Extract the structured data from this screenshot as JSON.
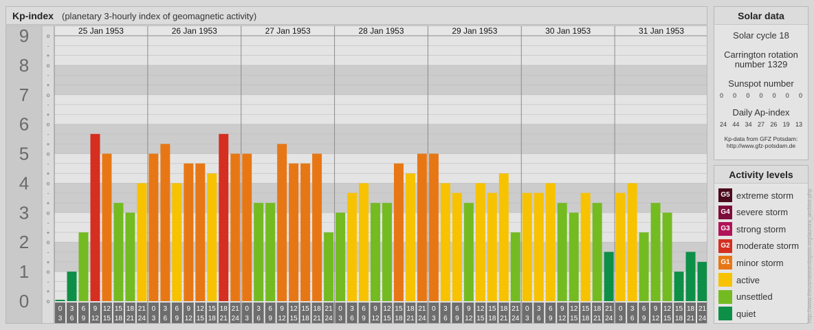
{
  "header": {
    "title": "Kp-index",
    "subtitle": "(planetary 3-hourly index of geomagnetic activity)"
  },
  "chart_data": {
    "type": "bar",
    "title": "Kp-index",
    "subtitle": "(planetary 3-hourly index of geomagnetic activity)",
    "y_range": [
      0,
      9
    ],
    "y_tick_labels": [
      "0",
      "1",
      "2",
      "3",
      "4",
      "5",
      "6",
      "7",
      "8",
      "9"
    ],
    "y_minor_tick_labels": [
      "o",
      "+",
      "-",
      "o",
      "+",
      "-",
      "o",
      "+",
      "-",
      "o",
      "+",
      "-",
      "o",
      "+",
      "-",
      "o",
      "+",
      "-",
      "o",
      "+",
      "-",
      "o",
      "+",
      "-",
      "o",
      "+",
      "-",
      "o"
    ],
    "days": [
      "25 Jan 1953",
      "26 Jan 1953",
      "27 Jan 1953",
      "28 Jan 1953",
      "29 Jan 1953",
      "30 Jan 1953",
      "31 Jan 1953"
    ],
    "interval_start_hours": [
      "0",
      "3",
      "6",
      "9",
      "12",
      "15",
      "18",
      "21"
    ],
    "interval_end_hours": [
      "3",
      "6",
      "9",
      "12",
      "15",
      "18",
      "21",
      "24"
    ],
    "values": [
      [
        0,
        1,
        2.33,
        5.67,
        5,
        3.33,
        3,
        4
      ],
      [
        5,
        5.33,
        4,
        4.67,
        4.67,
        4.33,
        5.67,
        5
      ],
      [
        5,
        3.33,
        3.33,
        5.33,
        4.67,
        4.67,
        5,
        2.33
      ],
      [
        3,
        3.67,
        4,
        3.33,
        3.33,
        4.67,
        4.33,
        5
      ],
      [
        5,
        4,
        3.67,
        3.33,
        4,
        3.67,
        4.33,
        2.33
      ],
      [
        3.67,
        3.67,
        4,
        3.33,
        3,
        3.67,
        3.33,
        1.67
      ],
      [
        3.67,
        4,
        2.33,
        3.33,
        3,
        1,
        1.67,
        1.33
      ]
    ],
    "grid": true,
    "level_colors": {
      "quiet": "#0e8f47",
      "unsettled": "#74bb22",
      "active": "#f7c200",
      "minor_storm": "#e77715",
      "moderate_storm": "#d42f20",
      "strong_storm": "#b01357",
      "severe_storm": "#7d0d3a",
      "extreme_storm": "#4b0a1d"
    }
  },
  "solar": {
    "title": "Solar data",
    "cycle": "Solar cycle 18",
    "carrington_line1": "Carrington rotation",
    "carrington_line2": "number 1329",
    "sunspot_title": "Sunspot number",
    "sunspot_values": [
      "0",
      "0",
      "0",
      "0",
      "0",
      "0",
      "0"
    ],
    "ap_title": "Daily Ap-index",
    "ap_values": [
      "24",
      "44",
      "34",
      "27",
      "26",
      "19",
      "13"
    ],
    "credit_line1": "Kp-data from GFZ Potsdam:",
    "credit_line2": "http://www.gfz-potsdam.de"
  },
  "legend": {
    "title": "Activity levels",
    "items": [
      {
        "code": "G5",
        "label": "extreme storm",
        "color": "#4b0a1d"
      },
      {
        "code": "G4",
        "label": "severe storm",
        "color": "#7d0d3a"
      },
      {
        "code": "G3",
        "label": "strong storm",
        "color": "#b01357"
      },
      {
        "code": "G2",
        "label": "moderate storm",
        "color": "#d42f20"
      },
      {
        "code": "G1",
        "label": "minor storm",
        "color": "#e77715"
      },
      {
        "code": "",
        "label": "active",
        "color": "#f7c200"
      },
      {
        "code": "",
        "label": "unsettled",
        "color": "#74bb22"
      },
      {
        "code": "",
        "label": "quiet",
        "color": "#0e8f47"
      }
    ]
  },
  "watermark": "http://www.theusmeteorologists.org/aurora_archive.php"
}
